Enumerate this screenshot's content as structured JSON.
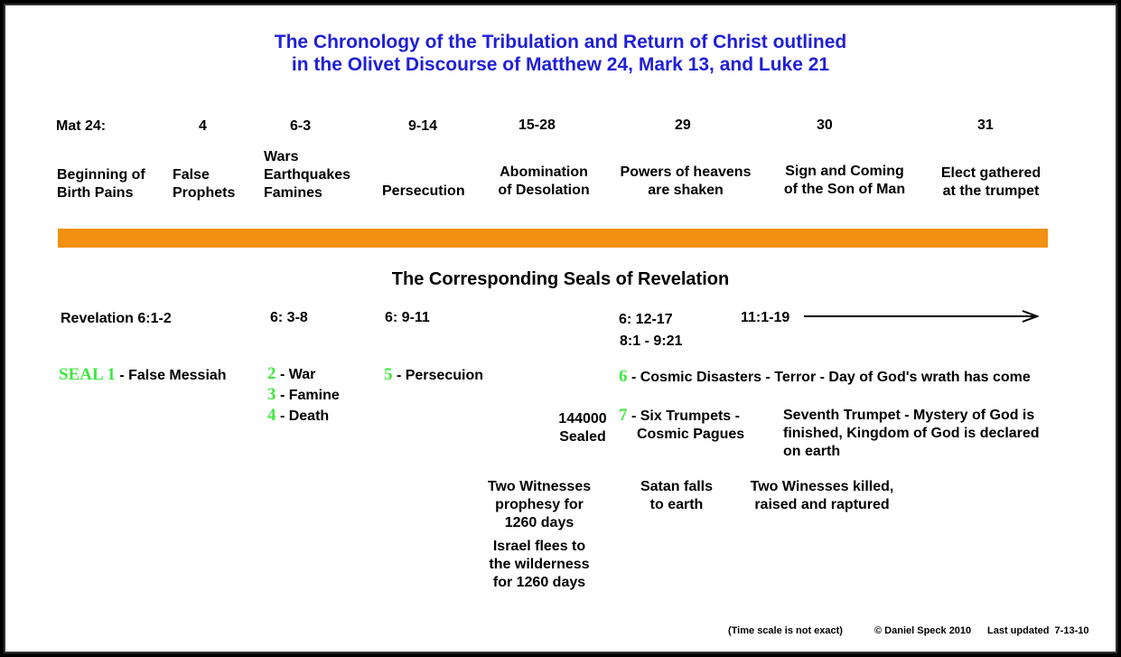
{
  "title": {
    "line1": "The Chronology of the Tribulation and Return of Christ outlined",
    "line2": "in the Olivet Discourse of Matthew 24, Mark 13, and Luke 21"
  },
  "matthew": {
    "label": "Mat 24:",
    "refs": [
      "4",
      "6-3",
      "9-14",
      "15-28",
      "29",
      "30",
      "31"
    ],
    "events": {
      "e0": [
        "Beginning of",
        "Birth Pains"
      ],
      "e1": [
        "False",
        "Prophets"
      ],
      "e2": [
        "Wars",
        "Earthquakes",
        "Famines"
      ],
      "e3": [
        "Persecution"
      ],
      "e4": [
        "Abomination",
        "of Desolation"
      ],
      "e5": [
        "Powers of heavens",
        "are shaken"
      ],
      "e6": [
        "Sign and Coming",
        "of the Son of Man"
      ],
      "e7": [
        "Elect gathered",
        "at the trumpet"
      ]
    }
  },
  "seals_heading": "The Corresponding Seals of Revelation",
  "revelation": {
    "refs": [
      "Revelation 6:1-2",
      "6: 3-8",
      "6: 9-11",
      "6: 12-17",
      "8:1 - 9:21",
      "11:1-19"
    ]
  },
  "seals": {
    "s1_num": "SEAL 1",
    "s1_text": "- False Messiah",
    "s2_num": "2",
    "s2_text": "- War",
    "s3_num": "3",
    "s3_text": "- Famine",
    "s4_num": "4",
    "s4_text": "- Death",
    "s5_num": "5",
    "s5_text": "- Persecuion",
    "s6_num": "6",
    "s6_text": "- Cosmic Disasters - Terror - Day of God's wrath has come",
    "s7_num": "7",
    "s7_text": [
      "- Six Trumpets -",
      "Cosmic Pagues"
    ]
  },
  "notes": {
    "sealed": [
      "144000",
      "Sealed"
    ],
    "seventh_trumpet": [
      "Seventh Trumpet - Mystery of God is",
      "finished, Kingdom of God is declared",
      "on earth"
    ],
    "two_witnesses": [
      "Two Witnesses",
      "prophesy for",
      "1260 days"
    ],
    "israel_flees": [
      "Israel flees to",
      "the wilderness",
      "for 1260 days"
    ],
    "satan_falls": [
      "Satan falls",
      "to earth"
    ],
    "witnesses_killed": [
      "Two Winesses killed,",
      "raised and raptured"
    ]
  },
  "footer": {
    "scale_note": "(Time scale is not exact)",
    "copyright": "© Daniel Speck 2010",
    "updated": "Last updated  7-13-10"
  },
  "colors": {
    "title": "#1f1fd8",
    "bar": "#f29011",
    "seal_number": "#3fe83f"
  }
}
